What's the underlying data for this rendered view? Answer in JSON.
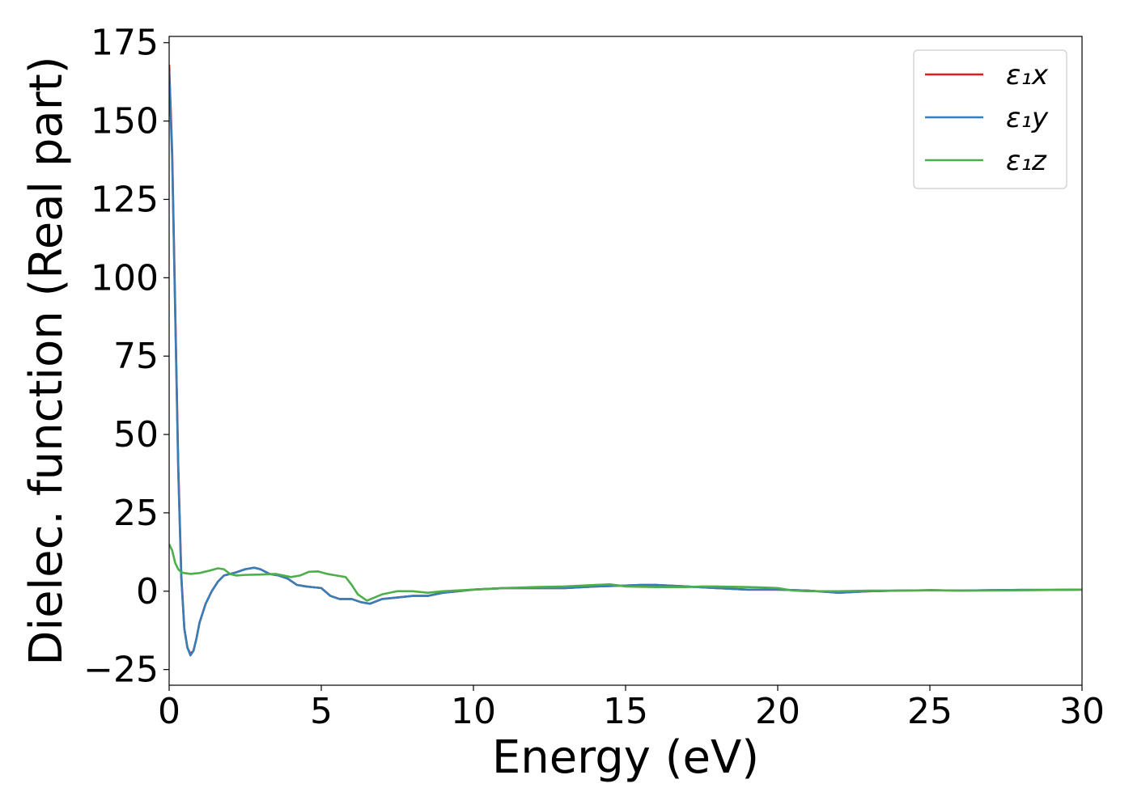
{
  "chart_data": {
    "type": "line",
    "title": "",
    "xlabel": "Energy (eV)",
    "ylabel": "Dielec. function (Real part)",
    "xlim": [
      0,
      30
    ],
    "ylim": [
      -30,
      177
    ],
    "xticks": [
      0,
      5,
      10,
      15,
      20,
      25,
      30
    ],
    "xtick_labels": [
      "0",
      "5",
      "10",
      "15",
      "20",
      "25",
      "30"
    ],
    "yticks": [
      -25,
      0,
      25,
      50,
      75,
      100,
      125,
      150,
      175
    ],
    "ytick_labels": [
      "−25",
      "0",
      "25",
      "50",
      "75",
      "100",
      "125",
      "150",
      "175"
    ],
    "grid": false,
    "legend_position": "top-right",
    "series": [
      {
        "name": "ε₁x",
        "color": "#e41a1c",
        "x": [
          0,
          0.1,
          0.2,
          0.3,
          0.4,
          0.5,
          0.6,
          0.7,
          0.8,
          0.9,
          1.0,
          1.2,
          1.4,
          1.6,
          1.8,
          2.0,
          2.2,
          2.5,
          2.8,
          3.0,
          3.3,
          3.6,
          3.9,
          4.2,
          4.5,
          5.0,
          5.3,
          5.6,
          6.0,
          6.3,
          6.6,
          7.0,
          7.5,
          8.0,
          8.5,
          9.0,
          9.5,
          10,
          11,
          12,
          13,
          14,
          15,
          15.5,
          16,
          17,
          18,
          19,
          20,
          21,
          22,
          23,
          24,
          25,
          26,
          27,
          28,
          29,
          30
        ],
        "y": [
          168,
          140,
          90,
          40,
          5,
          -12,
          -18,
          -20,
          -19,
          -15,
          -10,
          -4,
          0,
          3,
          5,
          5.5,
          6,
          7,
          7.5,
          7,
          5.5,
          5,
          4,
          2,
          1.5,
          1,
          -1.5,
          -2.5,
          -2.5,
          -3.5,
          -4,
          -2.5,
          -2,
          -1.5,
          -1.5,
          -0.5,
          0,
          0.5,
          1,
          1,
          1,
          1.5,
          1.8,
          2,
          2,
          1.5,
          1,
          0.5,
          0.5,
          0.2,
          -0.5,
          0,
          0.2,
          0.3,
          0.2,
          0.3,
          0.4,
          0.4,
          0.5
        ]
      },
      {
        "name": "ε₁y",
        "color": "#377eb8",
        "x": [
          0,
          0.1,
          0.2,
          0.3,
          0.4,
          0.5,
          0.6,
          0.7,
          0.8,
          0.9,
          1.0,
          1.2,
          1.4,
          1.6,
          1.8,
          2.0,
          2.2,
          2.5,
          2.8,
          3.0,
          3.3,
          3.6,
          3.9,
          4.2,
          4.5,
          5.0,
          5.3,
          5.6,
          6.0,
          6.3,
          6.6,
          7.0,
          7.5,
          8.0,
          8.5,
          9.0,
          9.5,
          10,
          11,
          12,
          13,
          14,
          15,
          15.5,
          16,
          17,
          18,
          19,
          20,
          21,
          22,
          23,
          24,
          25,
          26,
          27,
          28,
          29,
          30
        ],
        "y": [
          166,
          138,
          88,
          38,
          4,
          -12,
          -18,
          -20.5,
          -19,
          -15,
          -10,
          -4,
          0,
          3,
          5,
          5.5,
          6,
          7,
          7.5,
          7,
          5.5,
          5,
          4,
          2,
          1.5,
          1,
          -1.5,
          -2.5,
          -2.5,
          -3.5,
          -4,
          -2.5,
          -2,
          -1.5,
          -1.5,
          -0.5,
          0,
          0.5,
          1,
          1,
          1,
          1.5,
          1.8,
          2,
          2,
          1.5,
          1,
          0.5,
          0.5,
          0.2,
          -0.5,
          0,
          0.2,
          0.3,
          0.2,
          0.3,
          0.4,
          0.4,
          0.5
        ]
      },
      {
        "name": "ε₁z",
        "color": "#4daf4a",
        "x": [
          0,
          0.1,
          0.2,
          0.3,
          0.4,
          0.5,
          0.7,
          1.0,
          1.3,
          1.6,
          1.8,
          2.0,
          2.2,
          2.5,
          3.0,
          3.5,
          4.0,
          4.3,
          4.6,
          4.9,
          5.2,
          5.5,
          5.8,
          6.0,
          6.2,
          6.5,
          7.0,
          7.5,
          8.0,
          8.5,
          9.0,
          10,
          11,
          12,
          13,
          14,
          14.5,
          15,
          16,
          17,
          17.5,
          18,
          19,
          19.5,
          20,
          20.5,
          21,
          22,
          23,
          24,
          25,
          26,
          27,
          28,
          29,
          30
        ],
        "y": [
          15,
          13,
          9,
          7,
          6,
          5.8,
          5.5,
          5.8,
          6.5,
          7.3,
          7,
          5.5,
          5,
          5.2,
          5.3,
          5.5,
          4.5,
          5,
          6.2,
          6.3,
          5.5,
          5,
          4.5,
          2,
          -1,
          -3,
          -1,
          0,
          0,
          -0.5,
          0,
          0.5,
          1,
          1.3,
          1.5,
          2,
          2.2,
          1.5,
          1.3,
          1.3,
          1.5,
          1.5,
          1.3,
          1.2,
          1,
          0.2,
          0,
          0,
          0.2,
          0.2,
          0.3,
          0.2,
          0.2,
          0.3,
          0.4,
          0.5
        ]
      }
    ]
  }
}
